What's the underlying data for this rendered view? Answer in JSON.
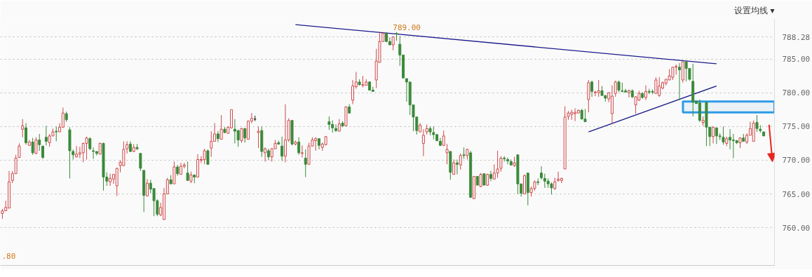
{
  "chart_data": {
    "type": "candlestick",
    "categories": [
      null,
      null,
      null,
      null,
      null,
      null,
      null,
      null,
      null,
      null,
      null,
      null,
      null,
      null,
      null,
      null,
      null,
      null,
      null,
      null,
      null,
      null,
      null,
      null,
      null,
      null,
      null,
      null,
      null,
      null,
      null,
      null,
      null,
      null,
      null,
      null,
      null,
      null,
      null,
      null,
      null,
      null,
      null,
      null,
      null,
      null,
      null,
      null,
      null,
      null,
      null,
      null,
      null,
      null,
      null,
      null,
      null,
      null,
      null,
      null,
      null,
      null,
      null,
      null,
      null,
      null,
      null,
      null,
      null,
      null,
      null,
      null,
      null,
      null,
      null,
      null,
      null,
      null,
      null,
      null,
      null,
      null,
      null,
      null,
      null,
      null,
      null,
      null,
      null,
      null,
      null,
      null,
      null,
      null,
      null,
      null,
      null,
      null,
      null,
      null,
      null,
      null,
      null,
      null,
      null,
      null,
      null,
      null,
      null,
      null,
      null,
      null,
      null,
      null,
      null,
      null,
      null,
      null,
      null,
      null,
      null,
      null,
      null,
      null,
      null,
      null,
      null,
      null,
      null,
      null,
      null,
      null,
      null,
      null,
      null,
      null,
      null,
      null,
      null,
      null,
      null,
      null,
      null,
      null,
      null,
      null,
      null,
      null,
      null,
      null,
      null,
      null,
      null,
      null,
      null,
      null,
      null,
      null,
      null,
      null,
      null,
      null,
      null,
      null,
      null,
      null,
      null,
      null,
      null,
      null,
      null,
      null,
      null,
      null,
      null,
      null,
      null,
      null,
      null,
      null,
      null,
      null,
      null,
      null,
      null,
      null,
      null,
      null,
      null,
      null,
      null,
      null,
      null,
      null,
      null,
      null,
      null,
      null,
      null,
      null,
      null,
      null,
      null,
      null,
      null,
      null,
      null,
      null,
      null,
      null,
      null,
      null,
      null,
      null,
      null,
      null,
      null,
      null,
      null,
      null,
      null,
      null,
      null,
      null,
      null,
      null,
      null
    ],
    "ohlc": [
      [
        762.1,
        762.8,
        761.3,
        762.5
      ],
      [
        762.5,
        764.0,
        762.5,
        763.0
      ],
      [
        762.9,
        768.4,
        762.9,
        766.8
      ],
      [
        767.0,
        768.4,
        766.6,
        768.0
      ],
      [
        768.0,
        770.8,
        768.0,
        770.3
      ],
      [
        770.4,
        772.5,
        770.4,
        772.1
      ],
      [
        774.6,
        776.1,
        773.4,
        775.1
      ],
      [
        774.8,
        775.5,
        772.3,
        772.6
      ],
      [
        772.2,
        773.0,
        772.2,
        772.7
      ],
      [
        772.7,
        773.3,
        770.8,
        771.1
      ],
      [
        771.0,
        773.4,
        770.9,
        773.0
      ],
      [
        773.0,
        773.9,
        771.4,
        772.3
      ],
      [
        772.1,
        772.1,
        770.2,
        770.4
      ],
      [
        773.4,
        775.1,
        772.2,
        772.8
      ],
      [
        772.6,
        773.9,
        772.0,
        773.6
      ],
      [
        773.6,
        774.7,
        773.6,
        774.2
      ],
      [
        774.3,
        775.0,
        772.8,
        774.2
      ],
      [
        774.2,
        775.5,
        774.2,
        774.9
      ],
      [
        774.9,
        777.8,
        774.8,
        777.0
      ],
      [
        776.9,
        777.2,
        775.7,
        776.0
      ],
      [
        774.5,
        774.9,
        767.3,
        771.4
      ],
      [
        771.3,
        771.6,
        770.1,
        770.8
      ],
      [
        770.5,
        772.1,
        770.4,
        770.9
      ],
      [
        770.9,
        772.0,
        770.3,
        771.1
      ],
      [
        771.1,
        772.6,
        769.7,
        772.5
      ],
      [
        772.5,
        773.5,
        770.1,
        773.3
      ],
      [
        773.2,
        773.4,
        771.5,
        771.7
      ],
      [
        771.4,
        771.9,
        770.2,
        771.3
      ],
      [
        771.3,
        771.3,
        770.7,
        771.0
      ],
      [
        770.9,
        772.6,
        770.9,
        772.5
      ],
      [
        772.5,
        772.6,
        765.5,
        767.5
      ],
      [
        767.5,
        768.2,
        766.2,
        766.9
      ],
      [
        766.8,
        768.0,
        766.2,
        767.3
      ],
      [
        767.2,
        767.9,
        766.5,
        767.9
      ],
      [
        766.2,
        768.9,
        764.7,
        768.8
      ],
      [
        769.2,
        770.0,
        768.2,
        769.7
      ],
      [
        769.2,
        772.8,
        769.2,
        771.6
      ],
      [
        771.7,
        772.8,
        771.0,
        772.3
      ],
      [
        772.4,
        772.8,
        771.2,
        771.3
      ],
      [
        771.3,
        772.4,
        771.2,
        771.9
      ],
      [
        771.9,
        772.4,
        771.5,
        771.7
      ],
      [
        771.0,
        771.1,
        768.4,
        768.8
      ],
      [
        768.5,
        768.5,
        762.3,
        764.8
      ],
      [
        764.7,
        767.2,
        764.7,
        766.6
      ],
      [
        766.6,
        767.1,
        765.1,
        765.7
      ],
      [
        765.8,
        765.8,
        761.7,
        764.0
      ],
      [
        764.0,
        764.2,
        761.7,
        762.0
      ],
      [
        761.9,
        763.7,
        761.7,
        763.0
      ],
      [
        761.2,
        765.9,
        761.2,
        765.0
      ],
      [
        765.0,
        767.4,
        765.0,
        767.1
      ],
      [
        767.1,
        767.8,
        766.5,
        766.5
      ],
      [
        766.5,
        769.8,
        766.5,
        769.0
      ],
      [
        769.0,
        769.3,
        767.7,
        768.0
      ],
      [
        767.9,
        769.6,
        767.9,
        769.1
      ],
      [
        769.1,
        769.6,
        768.8,
        769.3
      ],
      [
        768.1,
        769.8,
        767.0,
        767.0
      ],
      [
        766.9,
        768.3,
        766.6,
        767.8
      ],
      [
        767.8,
        767.9,
        766.6,
        767.5
      ],
      [
        767.5,
        770.9,
        767.5,
        770.1
      ],
      [
        770.0,
        770.6,
        769.6,
        770.1
      ],
      [
        770.1,
        771.7,
        769.4,
        771.4
      ],
      [
        771.4,
        771.6,
        769.3,
        769.4
      ],
      [
        771.8,
        774.3,
        770.5,
        772.8
      ],
      [
        772.8,
        775.5,
        772.8,
        773.9
      ],
      [
        773.9,
        774.3,
        772.7,
        773.2
      ],
      [
        773.1,
        776.7,
        773.1,
        774.6
      ],
      [
        774.6,
        774.9,
        774.0,
        774.1
      ],
      [
        774.0,
        775.0,
        773.9,
        774.9
      ],
      [
        774.8,
        777.5,
        774.7,
        777.5
      ],
      [
        774.6,
        776.1,
        772.5,
        774.3
      ],
      [
        774.4,
        774.5,
        772.0,
        773.0
      ],
      [
        772.9,
        774.8,
        772.6,
        774.7
      ],
      [
        774.7,
        774.7,
        772.6,
        773.3
      ],
      [
        773.1,
        775.9,
        773.1,
        775.8
      ],
      [
        775.8,
        777.0,
        775.5,
        776.2
      ],
      [
        776.1,
        776.6,
        775.8,
        776.1
      ],
      [
        774.1,
        775.0,
        771.8,
        774.3
      ],
      [
        774.4,
        775.0,
        770.5,
        771.3
      ],
      [
        771.1,
        771.9,
        769.8,
        771.7
      ],
      [
        771.4,
        771.7,
        770.0,
        770.5
      ],
      [
        770.5,
        771.8,
        769.8,
        771.7
      ],
      [
        771.7,
        773.0,
        771.7,
        772.5
      ],
      [
        772.6,
        772.9,
        772.3,
        772.4
      ],
      [
        772.1,
        773.5,
        769.9,
        770.6
      ],
      [
        770.6,
        778.3,
        769.7,
        773.0
      ],
      [
        773.0,
        776.2,
        772.7,
        775.9
      ],
      [
        775.9,
        775.9,
        772.2,
        772.4
      ],
      [
        772.4,
        772.9,
        772.2,
        772.7
      ],
      [
        772.7,
        773.4,
        770.8,
        771.1
      ],
      [
        771.0,
        772.2,
        770.4,
        771.1
      ],
      [
        770.3,
        771.6,
        767.5,
        769.4
      ],
      [
        769.4,
        772.6,
        769.4,
        772.1
      ],
      [
        772.1,
        773.4,
        772.1,
        773.0
      ],
      [
        772.9,
        773.4,
        771.4,
        773.2
      ],
      [
        773.2,
        773.2,
        771.6,
        772.2
      ],
      [
        771.9,
        772.6,
        771.4,
        772.4
      ],
      [
        772.3,
        773.6,
        772.2,
        773.5
      ],
      [
        775.7,
        776.5,
        774.5,
        775.3
      ],
      [
        775.3,
        775.9,
        774.1,
        774.8
      ],
      [
        774.7,
        775.3,
        774.2,
        774.4
      ],
      [
        774.3,
        776.1,
        774.3,
        775.4
      ],
      [
        775.5,
        775.8,
        774.9,
        775.1
      ],
      [
        775.1,
        778.0,
        775.1,
        777.9
      ],
      [
        777.9,
        778.3,
        776.9,
        777.0
      ],
      [
        778.9,
        781.9,
        778.3,
        781.0
      ],
      [
        780.9,
        783.1,
        780.6,
        781.6
      ],
      [
        781.6,
        782.0,
        781.1,
        781.2
      ],
      [
        781.1,
        782.5,
        780.8,
        781.2
      ],
      [
        781.1,
        782.0,
        781.1,
        781.6
      ],
      [
        781.6,
        781.7,
        780.3,
        780.4
      ],
      [
        780.4,
        780.9,
        780.2,
        780.2
      ],
      [
        781.9,
        786.5,
        780.7,
        784.7
      ],
      [
        784.5,
        788.9,
        784.5,
        787.6
      ],
      [
        787.6,
        789.0,
        787.6,
        788.8
      ],
      [
        788.8,
        789.0,
        787.5,
        787.6
      ],
      [
        787.6,
        788.2,
        787.1,
        787.1
      ],
      [
        787.1,
        788.3,
        786.3,
        788.3
      ],
      [
        788.8,
        789.0,
        787.7,
        788.7
      ],
      [
        787.2,
        788.4,
        784.0,
        785.6
      ],
      [
        785.6,
        785.6,
        782.2,
        782.2
      ],
      [
        782.1,
        782.1,
        778.7,
        781.6
      ],
      [
        781.6,
        781.6,
        776.7,
        778.2
      ],
      [
        778.2,
        778.2,
        774.3,
        776.4
      ],
      [
        776.4,
        776.5,
        773.8,
        774.4
      ],
      [
        774.2,
        775.5,
        774.2,
        775.2
      ],
      [
        772.5,
        774.6,
        770.6,
        773.7
      ],
      [
        774.2,
        775.3,
        773.8,
        774.7
      ],
      [
        774.7,
        775.0,
        773.7,
        774.2
      ],
      [
        774.1,
        775.0,
        773.1,
        773.8
      ],
      [
        773.8,
        773.9,
        772.8,
        772.9
      ],
      [
        772.8,
        773.3,
        772.1,
        772.2
      ],
      [
        772.2,
        774.4,
        772.1,
        773.6
      ],
      [
        771.1,
        772.4,
        769.4,
        771.6
      ],
      [
        771.3,
        771.3,
        767.1,
        768.2
      ],
      [
        767.9,
        770.1,
        767.9,
        769.6
      ],
      [
        769.6,
        770.1,
        767.9,
        769.4
      ],
      [
        769.3,
        771.0,
        768.6,
        770.7
      ],
      [
        770.8,
        771.9,
        770.2,
        770.7
      ],
      [
        770.7,
        771.7,
        770.1,
        771.6
      ],
      [
        771.1,
        771.4,
        764.4,
        764.5
      ],
      [
        764.3,
        767.6,
        764.3,
        767.6
      ],
      [
        767.6,
        767.6,
        766.3,
        766.3
      ],
      [
        766.1,
        768.1,
        766.0,
        767.9
      ],
      [
        768.0,
        768.0,
        766.3,
        766.3
      ],
      [
        766.3,
        768.0,
        766.2,
        767.9
      ],
      [
        767.9,
        768.4,
        766.9,
        767.3
      ],
      [
        767.2,
        769.4,
        767.2,
        768.1
      ],
      [
        768.1,
        771.4,
        767.4,
        768.7
      ],
      [
        768.8,
        770.6,
        768.3,
        770.3
      ],
      [
        770.3,
        770.6,
        769.8,
        770.2
      ],
      [
        770.1,
        770.4,
        769.4,
        769.9
      ],
      [
        769.8,
        770.1,
        769.2,
        769.3
      ],
      [
        769.2,
        770.5,
        769.0,
        769.6
      ],
      [
        770.8,
        770.8,
        765.0,
        766.5
      ],
      [
        766.5,
        766.5,
        764.6,
        765.1
      ],
      [
        765.0,
        767.9,
        765.0,
        767.7
      ],
      [
        768.1,
        768.1,
        763.3,
        765.2
      ],
      [
        765.2,
        766.1,
        764.6,
        765.8
      ],
      [
        765.8,
        767.0,
        765.5,
        766.8
      ],
      [
        766.8,
        767.3,
        766.3,
        766.7
      ],
      [
        768.1,
        769.1,
        767.1,
        767.4
      ],
      [
        767.3,
        768.0,
        765.9,
        766.9
      ],
      [
        766.9,
        767.3,
        765.9,
        766.5
      ],
      [
        766.5,
        766.7,
        764.9,
        765.9
      ],
      [
        765.8,
        767.4,
        765.6,
        766.8
      ],
      [
        767.0,
        768.3,
        766.8,
        767.2
      ],
      [
        767.0,
        767.4,
        766.6,
        767.3
      ],
      [
        768.7,
        778.0,
        768.7,
        776.4
      ],
      [
        776.5,
        777.3,
        776.0,
        777.0
      ],
      [
        776.8,
        777.5,
        776.0,
        777.1
      ],
      [
        776.9,
        777.7,
        775.8,
        777.1
      ],
      [
        777.0,
        777.5,
        777.0,
        777.4
      ],
      [
        777.4,
        777.6,
        776.1,
        776.1
      ],
      [
        776.1,
        777.6,
        775.7,
        775.7
      ],
      [
        779.0,
        781.9,
        777.1,
        781.5
      ],
      [
        781.6,
        781.8,
        779.4,
        780.2
      ],
      [
        780.0,
        780.3,
        779.5,
        780.1
      ],
      [
        780.0,
        781.9,
        779.4,
        780.3
      ],
      [
        780.3,
        781.0,
        779.6,
        779.6
      ],
      [
        779.6,
        779.6,
        778.7,
        779.2
      ],
      [
        779.1,
        780.1,
        778.6,
        780.0
      ],
      [
        776.9,
        781.1,
        775.4,
        779.5
      ],
      [
        779.9,
        781.8,
        779.4,
        781.6
      ],
      [
        781.6,
        781.8,
        780.1,
        780.4
      ],
      [
        780.3,
        781.5,
        780.1,
        780.2
      ],
      [
        780.3,
        780.6,
        780.1,
        780.1
      ],
      [
        780.0,
        780.5,
        779.3,
        780.3
      ],
      [
        780.3,
        780.5,
        779.2,
        779.4
      ],
      [
        778.2,
        779.5,
        776.9,
        779.4
      ],
      [
        778.9,
        780.3,
        778.8,
        779.9
      ],
      [
        779.9,
        780.1,
        779.1,
        779.3
      ],
      [
        779.3,
        781.1,
        778.9,
        780.2
      ],
      [
        780.2,
        780.6,
        779.8,
        780.1
      ],
      [
        780.2,
        780.5,
        779.8,
        780.1
      ],
      [
        779.9,
        782.3,
        779.9,
        781.9
      ],
      [
        779.6,
        782.3,
        779.4,
        781.0
      ],
      [
        780.7,
        781.7,
        780.5,
        781.5
      ],
      [
        781.4,
        782.0,
        781.1,
        782.0
      ],
      [
        781.9,
        783.5,
        781.9,
        782.5
      ],
      [
        782.3,
        783.8,
        781.9,
        783.8
      ],
      [
        783.8,
        784.2,
        782.7,
        783.9
      ],
      [
        783.8,
        784.4,
        778.9,
        783.4
      ],
      [
        781.9,
        784.6,
        781.5,
        784.6
      ],
      [
        784.6,
        784.6,
        781.7,
        783.6
      ],
      [
        783.6,
        783.6,
        781.8,
        782.0
      ],
      [
        781.7,
        784.3,
        776.5,
        778.6
      ],
      [
        778.7,
        778.9,
        778.4,
        778.4
      ],
      [
        778.5,
        779.0,
        775.7,
        775.9
      ],
      [
        775.6,
        776.5,
        775.1,
        775.9
      ],
      [
        778.6,
        778.7,
        772.1,
        774.9
      ],
      [
        774.9,
        774.9,
        772.1,
        773.5
      ],
      [
        773.5,
        775.0,
        772.5,
        774.9
      ],
      [
        774.8,
        774.8,
        772.4,
        773.6
      ],
      [
        773.6,
        774.0,
        773.0,
        773.5
      ],
      [
        773.4,
        775.0,
        772.3,
        772.7
      ],
      [
        772.5,
        773.5,
        772.1,
        773.2
      ],
      [
        773.4,
        774.6,
        771.6,
        773.0
      ],
      [
        773.0,
        773.9,
        770.3,
        772.9
      ],
      [
        772.9,
        773.0,
        772.4,
        772.6
      ],
      [
        772.6,
        773.4,
        771.8,
        773.3
      ],
      [
        773.3,
        773.9,
        772.8,
        772.8
      ],
      [
        772.7,
        774.0,
        772.4,
        773.7
      ],
      [
        773.7,
        775.7,
        773.7,
        774.7
      ],
      [
        772.8,
        775.9,
        772.8,
        775.5
      ],
      [
        775.6,
        776.7,
        774.2,
        774.7
      ],
      [
        774.6,
        775.2,
        774.1,
        774.4
      ],
      [
        774.2,
        774.2,
        773.6,
        773.6
      ]
    ],
    "series": [
      {
        "type": "line",
        "color": "#1a1a8c",
        "values": [
          null,
          null,
          null,
          null,
          null,
          null,
          null,
          null,
          null,
          null,
          null,
          null,
          null,
          null,
          null,
          null,
          null,
          null,
          null,
          null,
          null,
          null,
          null,
          null,
          null,
          null,
          null,
          null,
          null,
          null,
          null,
          null,
          null,
          null,
          null,
          null,
          null,
          null,
          null,
          null,
          null,
          null,
          null,
          null,
          null,
          null,
          null,
          null,
          null,
          null,
          null,
          null,
          null,
          null,
          null,
          null,
          null,
          null,
          null,
          null,
          null,
          null,
          null,
          null,
          null,
          null,
          null,
          null,
          null,
          null,
          null,
          null,
          null,
          null,
          null,
          null,
          null,
          null,
          null,
          null,
          null,
          null,
          null,
          null,
          null,
          null,
          null,
          790.1,
          null,
          null,
          null,
          null,
          null,
          null,
          null,
          null,
          null,
          null,
          null,
          null,
          null,
          null,
          null,
          null,
          null,
          null,
          null,
          null,
          null,
          null,
          null,
          null,
          null,
          null,
          null,
          null,
          null,
          null,
          null,
          null,
          null,
          null,
          null,
          null,
          null,
          null,
          null,
          null,
          null,
          null,
          null,
          null,
          null,
          null,
          null,
          null,
          null,
          null,
          null,
          null,
          null,
          null,
          null,
          null,
          null,
          null,
          null,
          null,
          null,
          null,
          null,
          null,
          null,
          null,
          null,
          null,
          null,
          null,
          null,
          null,
          null,
          null,
          null,
          null,
          null,
          null,
          null,
          null,
          null,
          null,
          null,
          null,
          null,
          null,
          null,
          null,
          null,
          null,
          null,
          null,
          null,
          null,
          null,
          null,
          null,
          null,
          null,
          null,
          null,
          null,
          null,
          null,
          null,
          null,
          null,
          null,
          null,
          null,
          null,
          null,
          null,
          null,
          null,
          null,
          null,
          null,
          null,
          null,
          null,
          null,
          null,
          null,
          784.3,
          null,
          null,
          null,
          null,
          null,
          null,
          null,
          null,
          null,
          null,
          null,
          null,
          null,
          null
        ]
      },
      {
        "type": "line",
        "color": "#1a1a8c",
        "values": [
          null,
          null,
          null,
          null,
          null,
          null,
          null,
          null,
          null,
          null,
          null,
          null,
          null,
          null,
          null,
          null,
          null,
          null,
          null,
          null,
          null,
          null,
          null,
          null,
          null,
          null,
          null,
          null,
          null,
          null,
          null,
          null,
          null,
          null,
          null,
          null,
          null,
          null,
          null,
          null,
          null,
          null,
          null,
          null,
          null,
          null,
          null,
          null,
          null,
          null,
          null,
          null,
          null,
          null,
          null,
          null,
          null,
          null,
          null,
          null,
          null,
          null,
          null,
          null,
          null,
          null,
          null,
          null,
          null,
          null,
          null,
          null,
          null,
          null,
          null,
          null,
          null,
          null,
          null,
          null,
          null,
          null,
          null,
          null,
          null,
          null,
          null,
          null,
          null,
          null,
          null,
          null,
          null,
          null,
          null,
          null,
          null,
          null,
          null,
          null,
          null,
          null,
          null,
          null,
          null,
          null,
          null,
          null,
          null,
          null,
          null,
          null,
          null,
          null,
          null,
          null,
          null,
          null,
          null,
          null,
          null,
          null,
          null,
          null,
          null,
          null,
          null,
          null,
          null,
          null,
          null,
          null,
          null,
          null,
          null,
          null,
          null,
          null,
          null,
          null,
          null,
          null,
          null,
          null,
          null,
          null,
          null,
          null,
          null,
          null,
          null,
          null,
          null,
          null,
          null,
          null,
          null,
          null,
          null,
          null,
          null,
          null,
          null,
          null,
          null,
          null,
          null,
          null,
          null,
          null,
          null,
          null,
          null,
          null,
          774.2,
          null,
          null,
          null,
          null,
          null,
          null,
          null,
          null,
          null,
          null,
          null,
          null,
          null,
          null,
          null,
          null,
          null,
          null,
          null,
          null,
          null,
          null,
          null,
          null,
          null,
          null,
          null,
          null,
          null,
          null,
          null,
          null,
          null,
          null,
          null,
          null,
          null,
          781.0,
          null,
          null,
          null,
          null,
          null,
          null,
          null,
          null,
          null,
          null,
          null,
          null,
          null,
          null
        ]
      }
    ],
    "bands": [
      {
        "axis": "y",
        "from": 777.1,
        "to": 778.7,
        "color": "#2e9be6"
      }
    ],
    "ylim": [
      754.4,
      791.0
    ],
    "yticks": [
      {
        "value": 760,
        "label": "760.00"
      },
      {
        "value": 765,
        "label": "765.00"
      },
      {
        "value": 770,
        "label": "770.00"
      },
      {
        "value": 775,
        "label": "775.00"
      },
      {
        "value": 780,
        "label": "780.00"
      },
      {
        "value": 785,
        "label": "785.00"
      },
      {
        "value": 788.28,
        "label": "788.28"
      }
    ],
    "grid": "y",
    "tick_labels": "y",
    "annotations": [
      "设置均线 ▾",
      {
        "text": "789.00",
        "y": 789.0
      },
      ".80"
    ]
  }
}
